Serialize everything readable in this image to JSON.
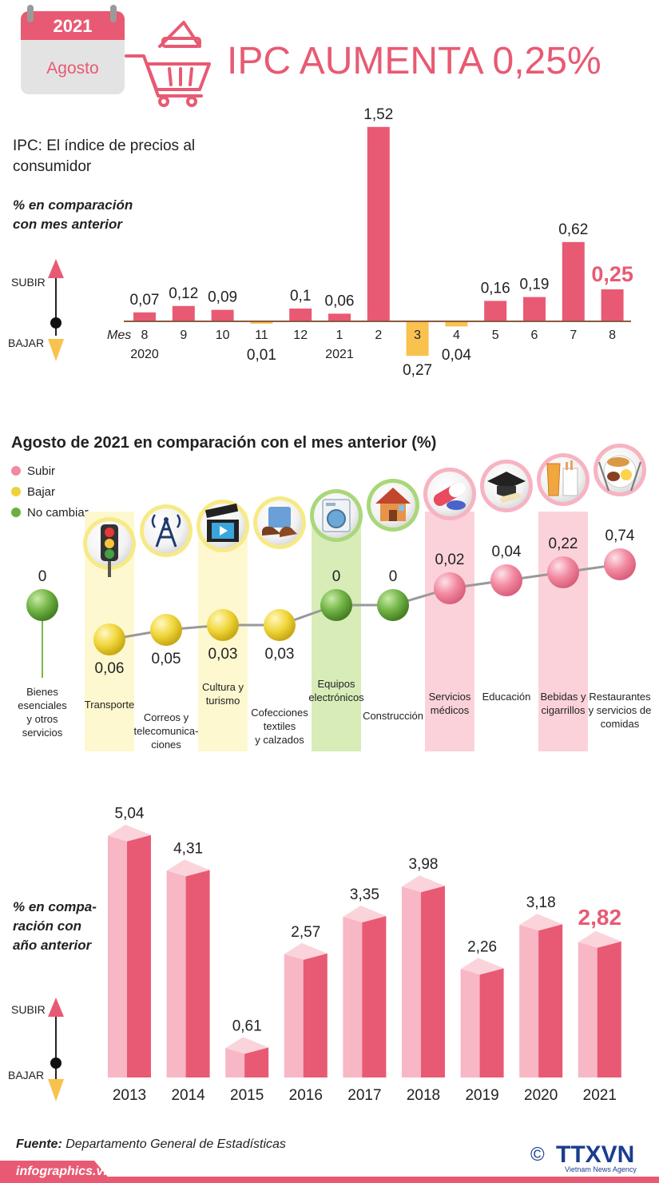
{
  "header": {
    "year": "2021",
    "month": "Agosto",
    "title_prefix": "IPC AUMENTA ",
    "title_value": "0,25%",
    "accent": "#e85a73"
  },
  "section1": {
    "description": "IPC: El índice de precios al consumidor",
    "subtitle_line1": "% en comparación",
    "subtitle_line2": "con mes anterior",
    "subir": "SUBIR",
    "bajar": "BAJAR",
    "mes_label": "Mes"
  },
  "chart_data": [
    {
      "type": "bar",
      "categories": [
        "8",
        "9",
        "10",
        "11",
        "12",
        "1",
        "2",
        "3",
        "4",
        "5",
        "6",
        "7",
        "8"
      ],
      "year_labels": [
        "2020",
        "",
        "",
        "",
        "",
        "2021",
        "",
        "",
        "",
        "",
        "",
        "",
        ""
      ],
      "values": [
        0.07,
        0.12,
        0.09,
        -0.01,
        0.1,
        0.06,
        1.52,
        -0.27,
        -0.04,
        0.16,
        0.19,
        0.62,
        0.25
      ],
      "value_labels": [
        "0,07",
        "0,12",
        "0,09",
        "0,01",
        "0,1",
        "0,06",
        "1,52",
        "0,27",
        "0,04",
        "0,16",
        "0,19",
        "0,62",
        "0,25"
      ],
      "colors": {
        "up": "#e85a73",
        "down": "#f9c24e"
      }
    },
    {
      "type": "scatter",
      "title": "Agosto de 2021 en comparación con el mes anterior (%)",
      "legend": [
        {
          "label": "Subir",
          "color": "#f08aa0"
        },
        {
          "label": "Bajar",
          "color": "#efd23a"
        },
        {
          "label": "No cambiar",
          "color": "#6bb043"
        }
      ],
      "categories": [
        {
          "label": "Bienes esenciales y otros servicios",
          "value": 0,
          "value_label": "0",
          "status": "same",
          "icon": "none"
        },
        {
          "label": "Transporte",
          "value": -0.06,
          "value_label": "0,06",
          "status": "down",
          "icon": "traffic-light-icon"
        },
        {
          "label": "Correos y telecomunica-ciones",
          "value": -0.05,
          "value_label": "0,05",
          "status": "down",
          "icon": "antenna-icon"
        },
        {
          "label": "Cultura y turismo",
          "value": -0.03,
          "value_label": "0,03",
          "status": "down",
          "icon": "clapperboard-icon"
        },
        {
          "label": "Cofecciones textiles y calzados",
          "value": -0.03,
          "value_label": "0,03",
          "status": "down",
          "icon": "clothes-shoes-icon"
        },
        {
          "label": "Equipos electrónicos",
          "value": 0,
          "value_label": "0",
          "status": "same",
          "icon": "washing-machine-icon"
        },
        {
          "label": "Construcción",
          "value": 0,
          "value_label": "0",
          "status": "same",
          "icon": "house-icon"
        },
        {
          "label": "Servicios médicos",
          "value": 0.02,
          "value_label": "0,02",
          "status": "up",
          "icon": "pill-icon"
        },
        {
          "label": "Educación",
          "value": 0.04,
          "value_label": "0,04",
          "status": "up",
          "icon": "graduation-cap-icon"
        },
        {
          "label": "Bebidas y cigarrillos",
          "value": 0.22,
          "value_label": "0,22",
          "status": "up",
          "icon": "drink-cigarettes-icon"
        },
        {
          "label": "Restaurantes y servicios de comidas",
          "value": 0.74,
          "value_label": "0,74",
          "status": "up",
          "icon": "food-plate-icon"
        }
      ]
    },
    {
      "type": "bar",
      "subtitle_line1": "% en compa-",
      "subtitle_line2": "ración con",
      "subtitle_line3": "año anterior",
      "categories": [
        "2013",
        "2014",
        "2015",
        "2016",
        "2017",
        "2018",
        "2019",
        "2020",
        "2021"
      ],
      "values": [
        5.04,
        4.31,
        0.61,
        2.57,
        3.35,
        3.98,
        2.26,
        3.18,
        2.82
      ],
      "value_labels": [
        "5,04",
        "4,31",
        "0,61",
        "2,57",
        "3,35",
        "3,98",
        "2,26",
        "3,18",
        "2,82"
      ],
      "subir": "SUBIR",
      "bajar": "BAJAR"
    }
  ],
  "footer": {
    "source_label": "Fuente:",
    "source_text": " Departamento General de Estadísticas",
    "site": "infographics.vn",
    "logo_text": "TTXVN",
    "logo_sub": "Vietnam News Agency",
    "copyright": "©"
  }
}
